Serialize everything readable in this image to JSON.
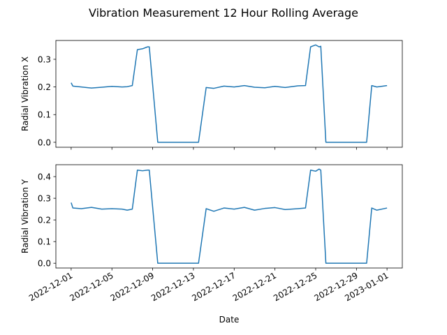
{
  "chart_data": {
    "type": "line",
    "title": "Vibration Measurement 12 Hour Rolling Average",
    "xlabel": "Date",
    "x_tick_labels": [
      "2022-12-01",
      "2022-12-05",
      "2022-12-09",
      "2022-12-13",
      "2022-12-17",
      "2022-12-21",
      "2022-12-25",
      "2022-12-29",
      "2023-01-01"
    ],
    "x_tick_dates": [
      "2022-12-01",
      "2022-12-05",
      "2022-12-09",
      "2022-12-13",
      "2022-12-17",
      "2022-12-21",
      "2022-12-25",
      "2022-12-29",
      "2023-01-01"
    ],
    "xlim": [
      "2022-11-29T12:00",
      "2023-01-02T12:00"
    ],
    "grid": false,
    "legend": "none",
    "color": "#1f77b4",
    "panels": [
      {
        "ylabel": "Radial Vibration X",
        "ylim": [
          -0.018,
          0.368
        ],
        "yticks": [
          0.0,
          0.1,
          0.2,
          0.3
        ],
        "ytick_labels": [
          "0.0",
          "0.1",
          "0.2",
          "0.3"
        ],
        "series": [
          {
            "x": [
              "2022-12-01T00:00",
              "2022-12-01T04:00",
              "2022-12-02T00:00",
              "2022-12-03T00:00",
              "2022-12-04T00:00",
              "2022-12-05T00:00",
              "2022-12-06T00:00",
              "2022-12-06T12:00",
              "2022-12-07T00:00",
              "2022-12-07T12:00",
              "2022-12-08T00:00",
              "2022-12-08T12:00",
              "2022-12-08T16:00",
              "2022-12-09T12:00",
              "2022-12-10T00:00",
              "2022-12-12T00:00",
              "2022-12-13T12:00",
              "2022-12-14T06:00",
              "2022-12-15T00:00",
              "2022-12-16T00:00",
              "2022-12-17T00:00",
              "2022-12-18T00:00",
              "2022-12-19T00:00",
              "2022-12-20T00:00",
              "2022-12-21T00:00",
              "2022-12-22T00:00",
              "2022-12-23T06:00",
              "2022-12-24T00:00",
              "2022-12-24T12:00",
              "2022-12-25T00:00",
              "2022-12-25T08:00",
              "2022-12-25T12:00",
              "2022-12-26T00:00",
              "2022-12-28T00:00",
              "2022-12-30T00:00",
              "2022-12-30T12:00",
              "2022-12-31T00:00",
              "2023-01-01T00:00"
            ],
            "y": [
              0.215,
              0.203,
              0.2,
              0.196,
              0.199,
              0.202,
              0.2,
              0.201,
              0.205,
              0.335,
              0.338,
              0.345,
              0.345,
              0.0,
              0.0,
              0.0,
              0.0,
              0.198,
              0.195,
              0.203,
              0.2,
              0.205,
              0.199,
              0.197,
              0.202,
              0.198,
              0.204,
              0.205,
              0.345,
              0.352,
              0.345,
              0.347,
              0.0,
              0.0,
              0.0,
              0.205,
              0.2,
              0.205
            ]
          }
        ]
      },
      {
        "ylabel": "Radial Vibration Y",
        "ylim": [
          -0.022,
          0.455
        ],
        "yticks": [
          0.0,
          0.1,
          0.2,
          0.3,
          0.4
        ],
        "ytick_labels": [
          "0.0",
          "0.1",
          "0.2",
          "0.3",
          "0.4"
        ],
        "series": [
          {
            "x": [
              "2022-12-01T00:00",
              "2022-12-01T04:00",
              "2022-12-02T00:00",
              "2022-12-03T00:00",
              "2022-12-04T00:00",
              "2022-12-05T00:00",
              "2022-12-06T00:00",
              "2022-12-06T12:00",
              "2022-12-07T00:00",
              "2022-12-07T12:00",
              "2022-12-08T00:00",
              "2022-12-08T12:00",
              "2022-12-08T16:00",
              "2022-12-09T12:00",
              "2022-12-10T00:00",
              "2022-12-12T00:00",
              "2022-12-13T12:00",
              "2022-12-14T06:00",
              "2022-12-15T00:00",
              "2022-12-16T00:00",
              "2022-12-17T00:00",
              "2022-12-18T00:00",
              "2022-12-19T00:00",
              "2022-12-20T00:00",
              "2022-12-21T00:00",
              "2022-12-22T00:00",
              "2022-12-23T06:00",
              "2022-12-24T00:00",
              "2022-12-24T12:00",
              "2022-12-25T00:00",
              "2022-12-25T08:00",
              "2022-12-25T12:00",
              "2022-12-26T00:00",
              "2022-12-28T00:00",
              "2022-12-30T00:00",
              "2022-12-30T12:00",
              "2022-12-31T00:00",
              "2023-01-01T00:00"
            ],
            "y": [
              0.28,
              0.255,
              0.252,
              0.258,
              0.25,
              0.252,
              0.25,
              0.245,
              0.25,
              0.43,
              0.427,
              0.43,
              0.43,
              0.0,
              0.0,
              0.0,
              0.0,
              0.252,
              0.24,
              0.255,
              0.25,
              0.258,
              0.245,
              0.253,
              0.257,
              0.248,
              0.252,
              0.255,
              0.43,
              0.425,
              0.435,
              0.43,
              0.0,
              0.0,
              0.0,
              0.255,
              0.245,
              0.255
            ]
          }
        ]
      }
    ]
  }
}
